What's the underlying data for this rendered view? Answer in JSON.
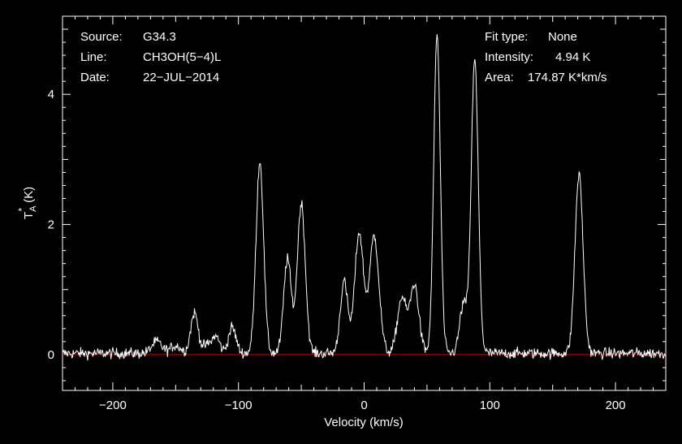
{
  "chart_data": {
    "type": "line",
    "xlabel": "Velocity (km/s)",
    "ylabel": "T*A (K)",
    "ylabel_main": "T",
    "ylabel_sup": "*",
    "ylabel_sub": "A",
    "ylabel_unit": "(K)",
    "xlim": [
      -240,
      240
    ],
    "ylim": [
      -0.55,
      5.2
    ],
    "xticks": [
      -200,
      -100,
      0,
      100,
      200
    ],
    "xtick_labels": [
      "−200",
      "−100",
      "0",
      "100",
      "200"
    ],
    "yticks": [
      0,
      2,
      4
    ],
    "ytick_labels": [
      "0",
      "2",
      "4"
    ],
    "baseline_y": 0,
    "baseline_color": "#cc0000",
    "line_color": "#ffffff",
    "background": "#000000",
    "grid": false,
    "noise_sigma": 0.06,
    "baseline_offset": 0.02,
    "peaks": [
      {
        "center": -165,
        "amp": 0.18,
        "width": 4
      },
      {
        "center": -150,
        "amp": 0.12,
        "width": 4
      },
      {
        "center": -135,
        "amp": 0.62,
        "width": 3
      },
      {
        "center": -125,
        "amp": 0.12,
        "width": 3
      },
      {
        "center": -118,
        "amp": 0.26,
        "width": 3
      },
      {
        "center": -105,
        "amp": 0.4,
        "width": 3
      },
      {
        "center": -83,
        "amp": 2.95,
        "width": 3
      },
      {
        "center": -61,
        "amp": 1.45,
        "width": 3
      },
      {
        "center": -50,
        "amp": 2.3,
        "width": 3.2
      },
      {
        "center": -16,
        "amp": 1.1,
        "width": 3
      },
      {
        "center": -4,
        "amp": 1.85,
        "width": 3.5
      },
      {
        "center": 8,
        "amp": 1.8,
        "width": 3.8
      },
      {
        "center": 30,
        "amp": 0.85,
        "width": 3.5
      },
      {
        "center": 40,
        "amp": 1.05,
        "width": 3.5
      },
      {
        "center": 58,
        "amp": 4.9,
        "width": 2.6
      },
      {
        "center": 79,
        "amp": 0.75,
        "width": 3
      },
      {
        "center": 88,
        "amp": 4.5,
        "width": 2.8
      },
      {
        "center": 171,
        "amp": 2.75,
        "width": 3.2
      }
    ]
  },
  "info_left": {
    "source_label": "Source:",
    "source_value": "G34.3",
    "line_label": "Line:",
    "line_value": "CH3OH(5−4)L",
    "date_label": "Date:",
    "date_value": "22−JUL−2014"
  },
  "info_right": {
    "fit_label": "Fit type:",
    "fit_value": "None",
    "intensity_label": "Intensity:",
    "intensity_value": "4.94 K",
    "area_label": "Area:",
    "area_value": "174.87 K*km/s"
  }
}
